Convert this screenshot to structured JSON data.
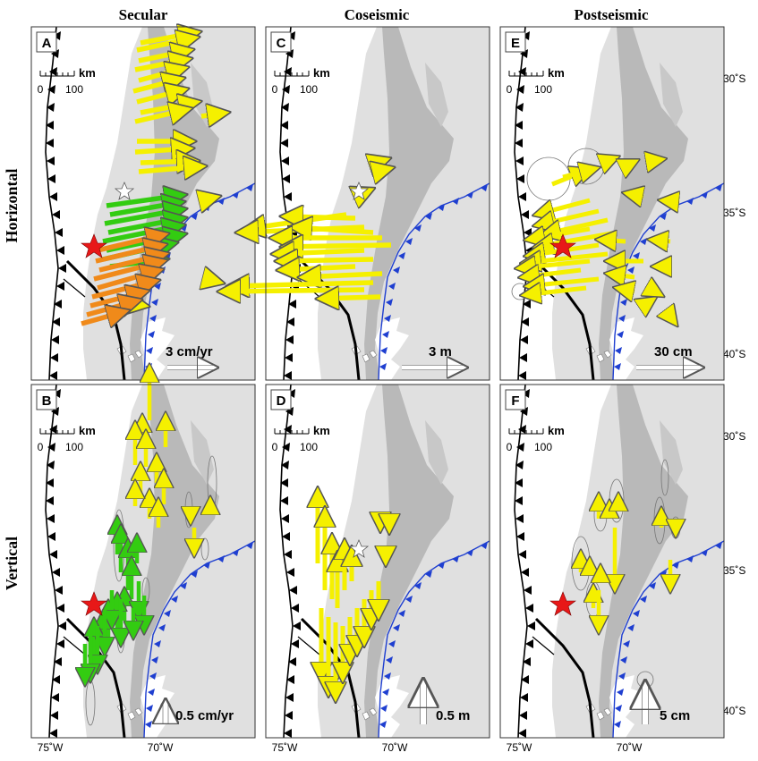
{
  "column_titles": [
    "Secular",
    "Coseismic",
    "Postseismic"
  ],
  "row_titles": [
    "Horizontal",
    "Vertical"
  ],
  "latitude_labels": [
    "30˚S",
    "35˚S",
    "40˚S"
  ],
  "longitude_labels": [
    "75˚W",
    "70˚W"
  ],
  "scale_bar": {
    "unit": "km",
    "zero": "0",
    "max": "100"
  },
  "colors": {
    "ocean": "#ffffff",
    "land": "#e0e0e0",
    "andes": "#b9b9b9",
    "trench": "#000000",
    "blue_front": "#1f3fd0",
    "secular_yellow": "#f5f000",
    "secular_green": "#33cc11",
    "secular_orange": "#f08a1a",
    "epicenter": "#e81818"
  },
  "panels": [
    {
      "id": "A",
      "component": "Horizontal",
      "period": "Secular",
      "reference_label": "3 cm/yr",
      "icon": "arrow-right"
    },
    {
      "id": "C",
      "component": "Horizontal",
      "period": "Coseismic",
      "reference_label": "3 m",
      "icon": "arrow-right"
    },
    {
      "id": "E",
      "component": "Horizontal",
      "period": "Postseismic",
      "reference_label": "30 cm",
      "icon": "arrow-right"
    },
    {
      "id": "B",
      "component": "Vertical",
      "period": "Secular",
      "reference_label": "0.5 cm/yr",
      "icon": "arrow-up"
    },
    {
      "id": "D",
      "component": "Vertical",
      "period": "Coseismic",
      "reference_label": "0.5 m",
      "icon": "arrow-up"
    },
    {
      "id": "F",
      "component": "Vertical",
      "period": "Postseismic",
      "reference_label": "5 cm",
      "icon": "arrow-up"
    }
  ],
  "markers": {
    "epicenter_icon": "red-star",
    "reference_icon": "white-star"
  }
}
